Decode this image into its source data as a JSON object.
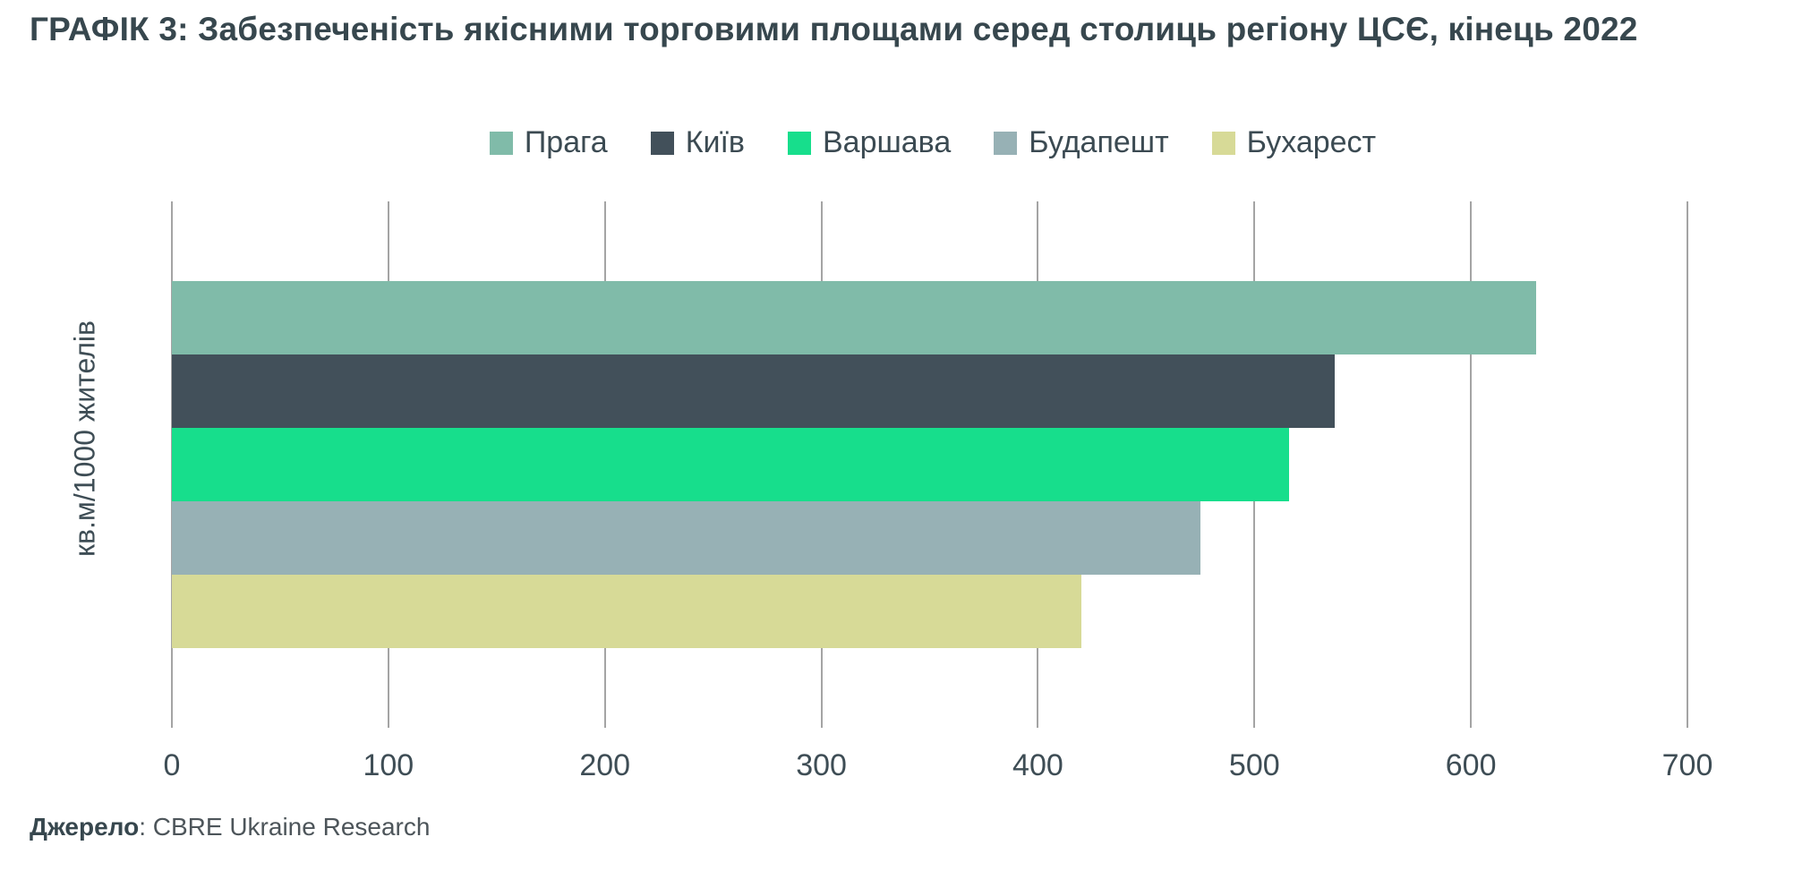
{
  "title": "ГРАФІК 3: Забезпеченість якісними торговими площами серед столиць регіону ЦСЄ, кінець 2022",
  "source": {
    "label": "Джерело",
    "separator": ": ",
    "text": "CBRE Ukraine Research"
  },
  "chart_data": {
    "type": "bar",
    "orientation": "horizontal",
    "title": "ГРАФІК 3: Забезпеченість якісними торговими площами серед столиць регіону ЦСЄ, кінець 2022",
    "xlabel": "",
    "ylabel": "кв.м/1000 жителів",
    "xlim": [
      0,
      700
    ],
    "x_ticks": [
      0,
      100,
      200,
      300,
      400,
      500,
      600,
      700
    ],
    "grid": "vertical",
    "legend_position": "top-center",
    "series": [
      {
        "name": "Прага",
        "slug": "prague",
        "value": 630,
        "color": "#80bba9"
      },
      {
        "name": "Київ",
        "slug": "kyiv",
        "value": 537,
        "color": "#42505a"
      },
      {
        "name": "Варшава",
        "slug": "warsaw",
        "value": 516,
        "color": "#17de8c"
      },
      {
        "name": "Будапешт",
        "slug": "budapest",
        "value": 475,
        "color": "#97b1b5"
      },
      {
        "name": "Бухарест",
        "slug": "bucharest",
        "value": 420,
        "color": "#d7da97"
      }
    ]
  },
  "colors": {
    "background": "#ffffff",
    "gridline": "#a4a4a4",
    "title_text": "#37474e",
    "axis_text": "#3e4d55"
  }
}
